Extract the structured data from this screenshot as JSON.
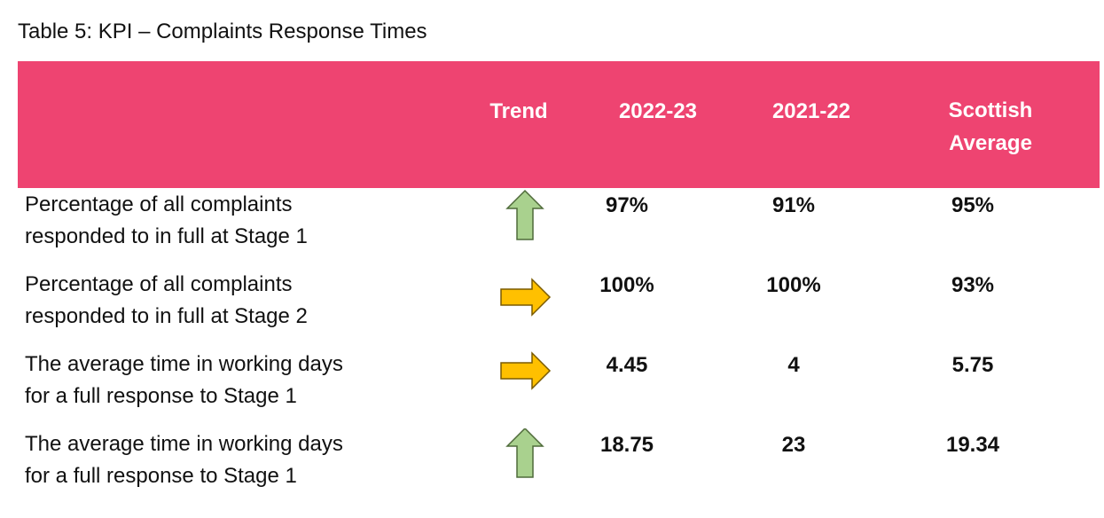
{
  "caption": "Table 5: KPI – Complaints Response Times",
  "header": {
    "trend": "Trend",
    "col1": "2022-23",
    "col2": "2021-22",
    "col3_line1": "Scottish",
    "col3_line2": "Average",
    "band_color": "#ee4471"
  },
  "rows": [
    {
      "desc_line1": "Percentage of all complaints",
      "desc_line2": "responded to in full at Stage 1",
      "trend": "up-arrow-icon",
      "trend_color": "#a9d18e",
      "v2022_23": "97%",
      "v2021_22": "91%",
      "scottish_average": "95%"
    },
    {
      "desc_line1": "Percentage of all complaints",
      "desc_line2": "responded to in full at Stage 2",
      "trend": "right-arrow-icon",
      "trend_color": "#ffc000",
      "v2022_23": "100%",
      "v2021_22": "100%",
      "scottish_average": "93%"
    },
    {
      "desc_line1": "The average time in working days",
      "desc_line2": "for a full response to Stage 1",
      "trend": "right-arrow-icon",
      "trend_color": "#ffc000",
      "v2022_23": "4.45",
      "v2021_22": "4",
      "scottish_average": "5.75"
    },
    {
      "desc_line1": "The average time in working days",
      "desc_line2": "for a full response to Stage 1",
      "trend": "up-arrow-icon",
      "trend_color": "#a9d18e",
      "v2022_23": "18.75",
      "v2021_22": "23",
      "scottish_average": "19.34"
    }
  ]
}
